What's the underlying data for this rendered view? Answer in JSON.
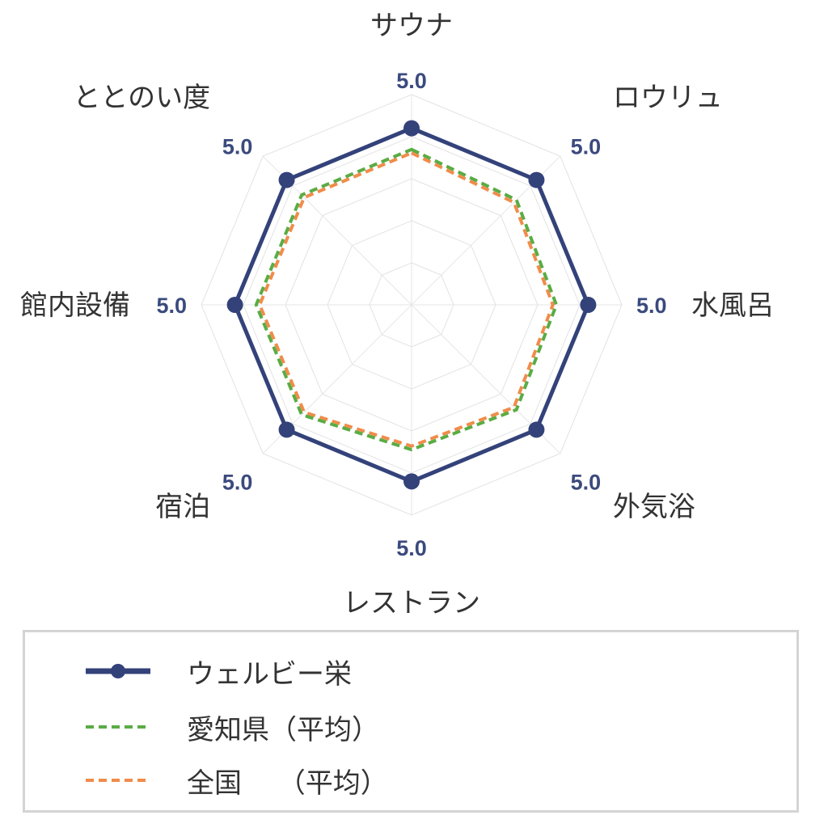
{
  "chart_data": {
    "type": "radar",
    "axes": [
      "サウナ",
      "ロウリュ",
      "水風呂",
      "外気浴",
      "レストラン",
      "宿泊",
      "館内設備",
      "ととのい度"
    ],
    "value_labels": [
      "5.0",
      "5.0",
      "5.0",
      "5.0",
      "5.0",
      "5.0",
      "5.0",
      "5.0"
    ],
    "range": [
      0,
      5
    ],
    "grid": true,
    "series": [
      {
        "name": "ウェルビー栄",
        "values": [
          5.0,
          5.0,
          5.0,
          5.0,
          5.0,
          5.0,
          5.0,
          5.0
        ],
        "color": "#34427a",
        "style": "solid-marker"
      },
      {
        "name": "愛知県（平均）",
        "values": [
          4.4,
          4.2,
          4.1,
          4.2,
          4.1,
          4.4,
          4.4,
          4.4
        ],
        "color": "#5aac44",
        "style": "dashed"
      },
      {
        "name": "全国　 （平均）",
        "values": [
          4.3,
          4.1,
          4.0,
          4.1,
          4.0,
          4.3,
          4.3,
          4.3
        ],
        "color": "#f08c4a",
        "style": "dashed"
      }
    ],
    "legend_position": "bottom"
  }
}
